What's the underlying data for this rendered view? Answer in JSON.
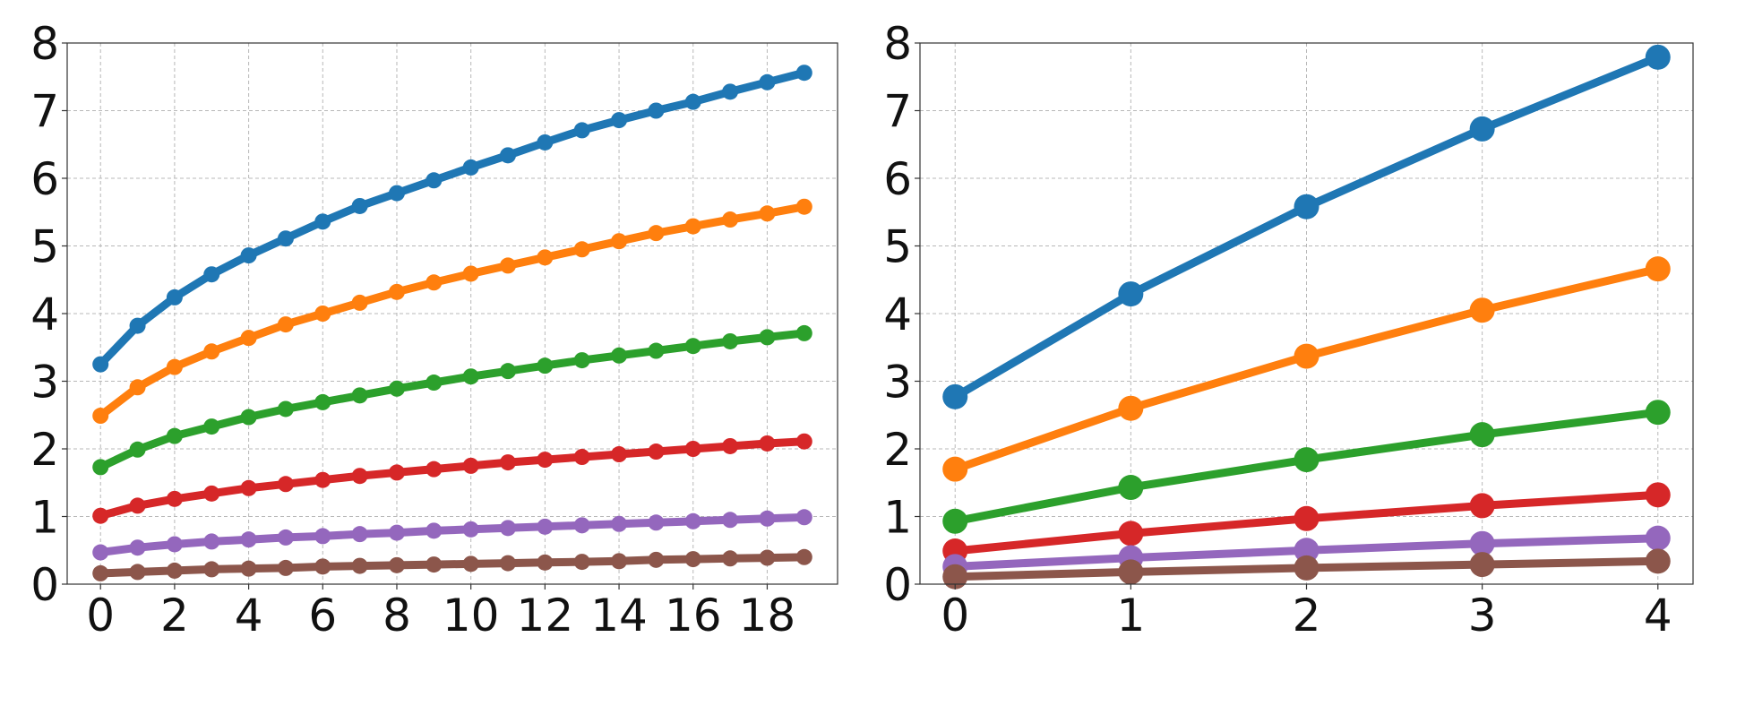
{
  "chart_data": [
    {
      "type": "line",
      "title": "",
      "xlabel": "",
      "ylabel": "",
      "grid": true,
      "xlim": [
        -0.9,
        19.9
      ],
      "ylim": [
        0,
        8
      ],
      "xticks": [
        0,
        2,
        4,
        6,
        8,
        10,
        12,
        14,
        16,
        18
      ],
      "yticks": [
        0,
        1,
        2,
        3,
        4,
        5,
        6,
        7,
        8
      ],
      "x": [
        0,
        1,
        2,
        3,
        4,
        5,
        6,
        7,
        8,
        9,
        10,
        11,
        12,
        13,
        14,
        15,
        16,
        17,
        18,
        19
      ],
      "series": [
        {
          "color": "#1f77b4",
          "values": [
            3.25,
            3.82,
            4.24,
            4.58,
            4.86,
            5.11,
            5.36,
            5.59,
            5.78,
            5.97,
            6.16,
            6.34,
            6.53,
            6.71,
            6.86,
            7.0,
            7.13,
            7.28,
            7.42,
            7.56
          ]
        },
        {
          "color": "#ff7f0e",
          "values": [
            2.49,
            2.91,
            3.21,
            3.44,
            3.64,
            3.84,
            4.0,
            4.16,
            4.32,
            4.46,
            4.59,
            4.71,
            4.83,
            4.95,
            5.07,
            5.19,
            5.29,
            5.39,
            5.48,
            5.58
          ]
        },
        {
          "color": "#2ca02c",
          "values": [
            1.73,
            1.99,
            2.19,
            2.33,
            2.47,
            2.59,
            2.69,
            2.79,
            2.89,
            2.98,
            3.07,
            3.15,
            3.23,
            3.31,
            3.38,
            3.45,
            3.52,
            3.59,
            3.65,
            3.71
          ]
        },
        {
          "color": "#d62728",
          "values": [
            1.01,
            1.16,
            1.26,
            1.34,
            1.42,
            1.48,
            1.54,
            1.6,
            1.65,
            1.7,
            1.75,
            1.8,
            1.84,
            1.88,
            1.92,
            1.96,
            2.0,
            2.04,
            2.08,
            2.11
          ]
        },
        {
          "color": "#9467bd",
          "values": [
            0.47,
            0.54,
            0.59,
            0.63,
            0.66,
            0.69,
            0.71,
            0.74,
            0.76,
            0.79,
            0.81,
            0.83,
            0.85,
            0.87,
            0.89,
            0.91,
            0.93,
            0.95,
            0.97,
            0.99
          ]
        },
        {
          "color": "#8c564b",
          "values": [
            0.16,
            0.18,
            0.2,
            0.22,
            0.23,
            0.24,
            0.26,
            0.27,
            0.28,
            0.29,
            0.3,
            0.31,
            0.32,
            0.33,
            0.34,
            0.36,
            0.37,
            0.38,
            0.39,
            0.4
          ]
        }
      ]
    },
    {
      "type": "line",
      "title": "",
      "xlabel": "",
      "ylabel": "",
      "grid": true,
      "xlim": [
        -0.2,
        4.2
      ],
      "ylim": [
        0,
        8
      ],
      "xticks": [
        0,
        1,
        2,
        3,
        4
      ],
      "yticks": [
        0,
        1,
        2,
        3,
        4,
        5,
        6,
        7,
        8
      ],
      "x": [
        0,
        1,
        2,
        3,
        4
      ],
      "series": [
        {
          "color": "#1f77b4",
          "values": [
            2.77,
            4.29,
            5.58,
            6.73,
            7.79
          ]
        },
        {
          "color": "#ff7f0e",
          "values": [
            1.7,
            2.6,
            3.37,
            4.05,
            4.66
          ]
        },
        {
          "color": "#2ca02c",
          "values": [
            0.93,
            1.43,
            1.84,
            2.21,
            2.54
          ]
        },
        {
          "color": "#d62728",
          "values": [
            0.49,
            0.75,
            0.97,
            1.16,
            1.32
          ]
        },
        {
          "color": "#9467bd",
          "values": [
            0.26,
            0.39,
            0.5,
            0.6,
            0.68
          ]
        },
        {
          "color": "#8c564b",
          "values": [
            0.11,
            0.18,
            0.24,
            0.29,
            0.34
          ]
        }
      ]
    }
  ]
}
